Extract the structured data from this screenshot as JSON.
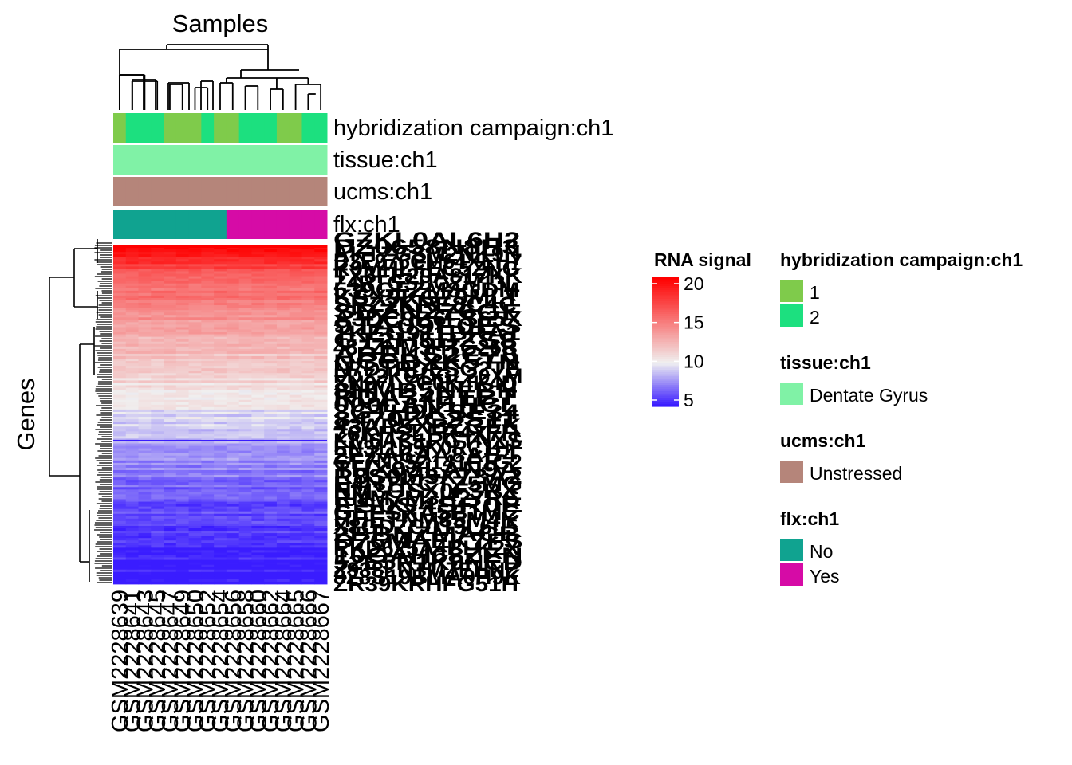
{
  "chart_data": {
    "type": "heatmap",
    "title": "",
    "column_title": "Samples",
    "row_title": "Genes",
    "samples": [
      "GSM2228639",
      "GSM2228641",
      "GSM2228643",
      "GSM2228645",
      "GSM2228647",
      "GSM2228649",
      "GSM2228650",
      "GSM2228652",
      "GSM2228654",
      "GSM2228656",
      "GSM2228658",
      "GSM2228660",
      "GSM2228662",
      "GSM2228664",
      "GSM2228665",
      "GSM2228666",
      "GSM2228667"
    ],
    "annotations": [
      {
        "name": "hybridization campaign:ch1",
        "values": [
          "1",
          "2",
          "2",
          "2",
          "1",
          "1",
          "1",
          "2",
          "1",
          "1",
          "2",
          "2",
          "2",
          "1",
          "1",
          "2",
          "2"
        ]
      },
      {
        "name": "tissue:ch1",
        "values": [
          "Dentate Gyrus",
          "Dentate Gyrus",
          "Dentate Gyrus",
          "Dentate Gyrus",
          "Dentate Gyrus",
          "Dentate Gyrus",
          "Dentate Gyrus",
          "Dentate Gyrus",
          "Dentate Gyrus",
          "Dentate Gyrus",
          "Dentate Gyrus",
          "Dentate Gyrus",
          "Dentate Gyrus",
          "Dentate Gyrus",
          "Dentate Gyrus",
          "Dentate Gyrus",
          "Dentate Gyrus"
        ]
      },
      {
        "name": "ucms:ch1",
        "values": [
          "Unstressed",
          "Unstressed",
          "Unstressed",
          "Unstressed",
          "Unstressed",
          "Unstressed",
          "Unstressed",
          "Unstressed",
          "Unstressed",
          "Unstressed",
          "Unstressed",
          "Unstressed",
          "Unstressed",
          "Unstressed",
          "Unstressed",
          "Unstressed",
          "Unstressed"
        ]
      },
      {
        "name": "flx:ch1",
        "values": [
          "No",
          "No",
          "No",
          "No",
          "No",
          "No",
          "No",
          "No",
          "No",
          "Yes",
          "Yes",
          "Yes",
          "Yes",
          "Yes",
          "Yes",
          "Yes",
          "Yes"
        ]
      }
    ],
    "row_profile": [
      20,
      18,
      16.5,
      15.5,
      14.5,
      13.8,
      13,
      12.4,
      11.8,
      11.2,
      10.6,
      10,
      9.3,
      8.7,
      8.1,
      7.5,
      7,
      6.5,
      6,
      5.7,
      5.4,
      5.2,
      5,
      4.8
    ],
    "color_scale": {
      "name": "RNA signal",
      "min": 5,
      "mid": 10,
      "max": 20,
      "ticks": [
        20,
        15,
        10,
        5
      ],
      "low_color": "#3a1cff",
      "mid_color": "#f0f0f0",
      "high_color": "#ff0000"
    },
    "legends": [
      {
        "title": "hybridization campaign:ch1",
        "items": [
          {
            "label": "1",
            "color": "#7fcb4b"
          },
          {
            "label": "2",
            "color": "#1ce07f"
          }
        ]
      },
      {
        "title": "tissue:ch1",
        "items": [
          {
            "label": "Dentate Gyrus",
            "color": "#80f2a6"
          }
        ]
      },
      {
        "title": "ucms:ch1",
        "items": [
          {
            "label": "Unstressed",
            "color": "#b5857a"
          }
        ]
      },
      {
        "title": "flx:ch1",
        "items": [
          {
            "label": "No",
            "color": "#10a390"
          },
          {
            "label": "Yes",
            "color": "#d60ba6"
          }
        ]
      }
    ]
  }
}
